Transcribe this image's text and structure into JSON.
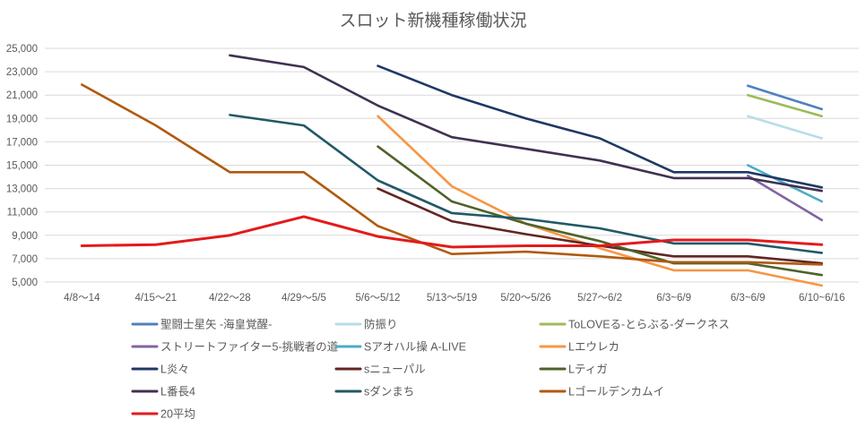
{
  "chart_data": {
    "type": "line",
    "title": "スロット新機種稼働状況",
    "xlabel": "",
    "ylabel": "",
    "ylim": [
      5000,
      25000
    ],
    "yticks": [
      5000,
      7000,
      9000,
      11000,
      13000,
      15000,
      17000,
      19000,
      21000,
      23000,
      25000
    ],
    "ytick_labels": [
      "5,000",
      "7,000",
      "9,000",
      "11,000",
      "13,000",
      "15,000",
      "17,000",
      "19,000",
      "21,000",
      "23,000",
      "25,000"
    ],
    "categories": [
      "4/8～14",
      "4/15～21",
      "4/22～28",
      "4/29～5/5",
      "5/6～5/12",
      "5/13～5/19",
      "5/20～5/26",
      "5/27～6/2",
      "6/3~6/9",
      "6/3~6/9",
      "6/10~6/16"
    ],
    "legend_position": "bottom",
    "grid": true,
    "series": [
      {
        "name": "聖闘士星矢 -海皇覚醒-",
        "color": "#4f81bd",
        "values": [
          null,
          null,
          null,
          null,
          null,
          null,
          null,
          null,
          null,
          21800,
          19800
        ]
      },
      {
        "name": "防振り",
        "color": "#b7dde8",
        "values": [
          null,
          null,
          null,
          null,
          null,
          null,
          null,
          null,
          null,
          19200,
          17300
        ]
      },
      {
        "name": "ToLOVEる-とらぶる-ダークネス",
        "color": "#9bbb59",
        "values": [
          null,
          null,
          null,
          null,
          null,
          null,
          null,
          null,
          null,
          21000,
          19200
        ]
      },
      {
        "name": "ストリートファイター5-挑戦者の道-",
        "color": "#8064a2",
        "values": [
          null,
          null,
          null,
          null,
          null,
          null,
          null,
          null,
          null,
          14100,
          10300
        ]
      },
      {
        "name": "Sアオハル操 A-LIVE",
        "color": "#4bacc6",
        "values": [
          null,
          null,
          null,
          null,
          null,
          null,
          null,
          null,
          null,
          15000,
          11900
        ]
      },
      {
        "name": "Lエウレカ",
        "color": "#f79646",
        "values": [
          null,
          null,
          null,
          null,
          19200,
          13200,
          10000,
          7900,
          6000,
          6000,
          4700
        ]
      },
      {
        "name": "L炎々",
        "color": "#1f3864",
        "values": [
          null,
          null,
          null,
          null,
          23500,
          21000,
          19000,
          17300,
          14400,
          14400,
          13100
        ]
      },
      {
        "name": "sニューパル",
        "color": "#632523",
        "values": [
          null,
          null,
          null,
          null,
          13000,
          10200,
          9100,
          8100,
          7200,
          7200,
          6600
        ]
      },
      {
        "name": "Lティガ",
        "color": "#4f6228",
        "values": [
          null,
          null,
          null,
          null,
          16600,
          11900,
          10000,
          8500,
          6600,
          6600,
          5600
        ]
      },
      {
        "name": "L番長4",
        "color": "#403152",
        "values": [
          null,
          null,
          24400,
          23400,
          20100,
          17400,
          16400,
          15400,
          13900,
          13900,
          12800
        ]
      },
      {
        "name": "sダンまち",
        "color": "#215967",
        "values": [
          null,
          null,
          19300,
          18400,
          13700,
          10900,
          10400,
          9600,
          8300,
          8300,
          7500
        ]
      },
      {
        "name": "Lゴールデンカムイ",
        "color": "#b15a0e",
        "values": [
          21900,
          18400,
          14400,
          14400,
          9800,
          7400,
          7600,
          7200,
          6700,
          6700,
          6500
        ]
      },
      {
        "name": "20平均",
        "color": "#e31a1c",
        "values": [
          8100,
          8200,
          9000,
          10600,
          8900,
          8000,
          8100,
          8100,
          8600,
          8600,
          8200
        ]
      }
    ]
  }
}
